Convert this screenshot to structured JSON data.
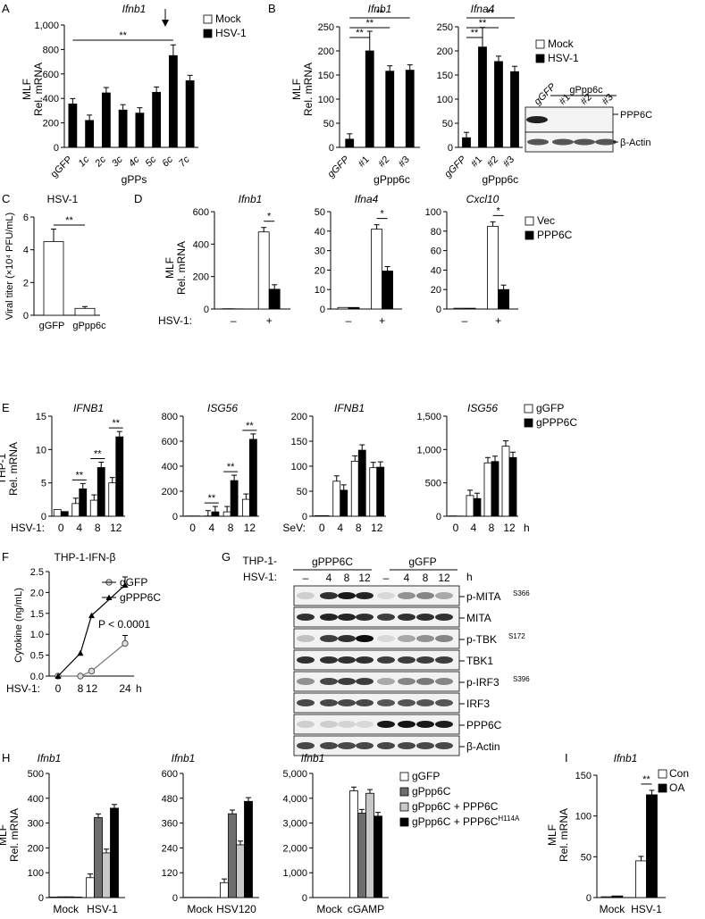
{
  "colors": {
    "white": "#ffffff",
    "black": "#000000",
    "dark_gray": "#6e6e6e",
    "light_gray": "#c8c8c8"
  },
  "chart_data": [
    {
      "panel": "A",
      "type": "bar",
      "title": "Ifnb1",
      "ylabel": "MLF\nRel. mRNA",
      "ylim": [
        0,
        1000
      ],
      "yticks": [
        "0",
        "200",
        "400",
        "600",
        "800",
        "1,000"
      ],
      "categories": [
        "gGFP",
        "1c",
        "2c",
        "3c",
        "4c",
        "5c",
        "6c",
        "7c"
      ],
      "group_label": "gPPs",
      "legend": [
        "Mock",
        "HSV-1"
      ],
      "series": [
        {
          "name": "HSV-1",
          "values": [
            355,
            220,
            445,
            305,
            280,
            450,
            750,
            545
          ]
        }
      ],
      "annotations": [
        "**"
      ]
    },
    {
      "panel": "B-left",
      "type": "bar",
      "title": "Ifnb1",
      "ylabel": "MLF\nRel. mRNA",
      "ylim": [
        0,
        250
      ],
      "yticks": [
        "0",
        "50",
        "100",
        "150",
        "200",
        "250"
      ],
      "categories": [
        "gGFP",
        "#1",
        "#2",
        "#3"
      ],
      "group_label": "gPpp6c",
      "series": [
        {
          "name": "HSV-1",
          "values": [
            17,
            200,
            158,
            160
          ]
        }
      ],
      "annotations": [
        "**",
        "**",
        "**"
      ]
    },
    {
      "panel": "B-right",
      "type": "bar",
      "title": "Ifna4",
      "ylim": [
        0,
        250
      ],
      "yticks": [
        "0",
        "50",
        "100",
        "150",
        "200",
        "250"
      ],
      "categories": [
        "gGFP",
        "#1",
        "#2",
        "#3"
      ],
      "group_label": "gPpp6c",
      "legend": [
        "Mock",
        "HSV-1"
      ],
      "series": [
        {
          "name": "HSV-1",
          "values": [
            20,
            208,
            178,
            157
          ]
        }
      ],
      "annotations": [
        "**",
        "**",
        "**"
      ]
    },
    {
      "panel": "B-blot",
      "type": "blot",
      "lanes": [
        "gGFP",
        "#1",
        "#2",
        "#3"
      ],
      "group_label": "gPpp6c",
      "bands": [
        "PPP6C",
        "β-Actin"
      ]
    },
    {
      "panel": "C",
      "type": "bar",
      "title": "HSV-1",
      "ylabel": "Viral titer (×10⁴ PFU/mL)",
      "ylim": [
        0,
        6
      ],
      "yticks": [
        "0",
        "2",
        "4",
        "6"
      ],
      "categories": [
        "gGFP",
        "gPpp6c"
      ],
      "series": [
        {
          "values": [
            4.5,
            0.42
          ]
        }
      ],
      "annotations": [
        "**"
      ]
    },
    {
      "panel": "D1",
      "type": "bar",
      "title": "Ifnb1",
      "ylabel": "MLF\nRel. mRNA",
      "ylim": [
        0,
        600
      ],
      "yticks": [
        "0",
        "200",
        "400",
        "600"
      ],
      "categories": [
        "–",
        "+"
      ],
      "xprefix": "HSV-1:",
      "series": [
        {
          "name": "Vec",
          "values": [
            2,
            475
          ]
        },
        {
          "name": "PPP6C",
          "values": [
            1,
            122
          ]
        }
      ],
      "annotations": [
        "*"
      ]
    },
    {
      "panel": "D2",
      "type": "bar",
      "title": "Ifna4",
      "ylim": [
        0,
        50
      ],
      "yticks": [
        "0",
        "10",
        "20",
        "30",
        "40",
        "50"
      ],
      "categories": [
        "–",
        "+"
      ],
      "series": [
        {
          "name": "Vec",
          "values": [
            0.8,
            41
          ]
        },
        {
          "name": "PPP6C",
          "values": [
            0.8,
            19.5
          ]
        }
      ],
      "annotations": [
        "*"
      ]
    },
    {
      "panel": "D3",
      "type": "bar",
      "title": "Cxcl10",
      "ylim": [
        0,
        100
      ],
      "yticks": [
        "0",
        "20",
        "40",
        "60",
        "80",
        "100"
      ],
      "categories": [
        "–",
        "+"
      ],
      "legend": [
        "Vec",
        "PPP6C"
      ],
      "series": [
        {
          "name": "Vec",
          "values": [
            0.8,
            85
          ]
        },
        {
          "name": "PPP6C",
          "values": [
            0.8,
            20
          ]
        }
      ],
      "annotations": [
        "*"
      ]
    },
    {
      "panel": "E1",
      "type": "bar",
      "title": "IFNB1",
      "ylabel": "THP-1\nRel. mRNA",
      "ylim": [
        0,
        15
      ],
      "yticks": [
        "0",
        "5",
        "10",
        "15"
      ],
      "categories": [
        "0",
        "4",
        "8",
        "12"
      ],
      "xprefix": "HSV-1:",
      "series": [
        {
          "name": "gGFP",
          "values": [
            1.0,
            1.9,
            2.4,
            5.0
          ]
        },
        {
          "name": "gPPP6C",
          "values": [
            0.7,
            4.1,
            7.3,
            11.9
          ]
        }
      ],
      "annotations": [
        "**",
        "**",
        "**"
      ]
    },
    {
      "panel": "E2",
      "type": "bar",
      "title": "ISG56",
      "ylim": [
        0,
        800
      ],
      "yticks": [
        "0",
        "200",
        "400",
        "600",
        "800"
      ],
      "categories": [
        "0",
        "4",
        "8",
        "12"
      ],
      "series": [
        {
          "name": "gGFP",
          "values": [
            2,
            2,
            35,
            135
          ]
        },
        {
          "name": "gPPP6C",
          "values": [
            2,
            35,
            285,
            615
          ]
        }
      ],
      "annotations": [
        "**",
        "**",
        "**"
      ]
    },
    {
      "panel": "E3",
      "type": "bar",
      "title": "IFNB1",
      "ylim": [
        0,
        200
      ],
      "yticks": [
        "0",
        "50",
        "100",
        "150",
        "200"
      ],
      "categories": [
        "0",
        "4",
        "8",
        "12"
      ],
      "xprefix": "SeV:",
      "series": [
        {
          "name": "gGFP",
          "values": [
            1,
            70,
            110,
            97
          ]
        },
        {
          "name": "gPPP6C",
          "values": [
            1,
            52,
            132,
            98
          ]
        }
      ]
    },
    {
      "panel": "E4",
      "type": "bar",
      "title": "ISG56",
      "ylim": [
        0,
        1500
      ],
      "yticks": [
        "0",
        "500",
        "1,000",
        "1,500"
      ],
      "categories": [
        "0",
        "4",
        "8",
        "12"
      ],
      "xunit": "h",
      "legend": [
        "gGFP",
        "gPPP6C"
      ],
      "series": [
        {
          "name": "gGFP",
          "values": [
            5,
            310,
            800,
            1050
          ]
        },
        {
          "name": "gPPP6C",
          "values": [
            3,
            265,
            820,
            880
          ]
        }
      ]
    },
    {
      "panel": "F",
      "type": "line",
      "title": "THP-1-IFN-β",
      "ylabel": "Cytokine (ng/mL)",
      "ylim": [
        0,
        2.5
      ],
      "yticks": [
        "0.0",
        "0.5",
        "1.0",
        "1.5",
        "2.0",
        "2.5"
      ],
      "x": [
        "0",
        "8",
        "12",
        "24"
      ],
      "xunit": "h",
      "xprefix": "HSV-1:",
      "series": [
        {
          "name": "gGFP",
          "values": [
            0,
            0,
            0.12,
            0.78
          ]
        },
        {
          "name": "gPPP6C",
          "values": [
            0,
            0.55,
            1.45,
            2.18
          ]
        }
      ],
      "annotations": [
        "P < 0.0001"
      ]
    },
    {
      "panel": "G",
      "type": "blot",
      "row_label": "THP-1-",
      "groups": [
        "gPPP6C",
        "gGFP"
      ],
      "lanes": [
        "–",
        "4",
        "8",
        "12",
        "–",
        "4",
        "8",
        "12"
      ],
      "xprefix": "HSV-1:",
      "xunit": "h",
      "bands": [
        "p-MITA",
        "MITA",
        "p-TBK",
        "TBK1",
        "p-IRF3",
        "IRF3",
        "PPP6C",
        "β-Actin"
      ]
    },
    {
      "panel": "H1",
      "type": "bar",
      "title": "Ifnb1",
      "ylabel": "MLF\nRel. mRNA",
      "ylim": [
        0,
        500
      ],
      "yticks": [
        "0",
        "100",
        "200",
        "300",
        "400",
        "500"
      ],
      "categories": [
        "Mock",
        "HSV-1"
      ],
      "series": [
        {
          "name": "gGFP",
          "values": [
            2,
            80
          ]
        },
        {
          "name": "gPpp6C",
          "values": [
            3,
            322
          ]
        },
        {
          "name": "gPpp6C + PPP6C",
          "values": [
            3,
            180
          ]
        },
        {
          "name": "gPpp6C + PPP6C H114A",
          "values": [
            2,
            360
          ]
        }
      ]
    },
    {
      "panel": "H2",
      "type": "bar",
      "title": "Ifnb1",
      "ylim": [
        0,
        600
      ],
      "yticks": [
        "0",
        "120",
        "240",
        "360",
        "480",
        "600"
      ],
      "categories": [
        "Mock",
        "HSV120"
      ],
      "series": [
        {
          "name": "gGFP",
          "values": [
            1,
            72
          ]
        },
        {
          "name": "gPpp6C",
          "values": [
            1,
            405
          ]
        },
        {
          "name": "gPpp6C + PPP6C",
          "values": [
            1,
            255
          ]
        },
        {
          "name": "gPpp6C + PPP6C H114A",
          "values": [
            1,
            465
          ]
        }
      ]
    },
    {
      "panel": "H3",
      "type": "bar",
      "title": "Ifnb1",
      "ylim": [
        0,
        5000
      ],
      "yticks": [
        "0",
        "1,000",
        "2,000",
        "3,000",
        "4,000",
        "5,000"
      ],
      "categories": [
        "Mock",
        "cGAMP"
      ],
      "legend": [
        "gGFP",
        "gPpp6C",
        "gPpp6C + PPP6C",
        "gPpp6C + PPP6C H114A"
      ],
      "series": [
        {
          "name": "gGFP",
          "values": [
            5,
            4300
          ]
        },
        {
          "name": "gPpp6C",
          "values": [
            5,
            3400
          ]
        },
        {
          "name": "gPpp6C + PPP6C",
          "values": [
            5,
            4200
          ]
        },
        {
          "name": "gPpp6C + PPP6C H114A",
          "values": [
            5,
            3280
          ]
        }
      ]
    },
    {
      "panel": "I",
      "type": "bar",
      "title": "Ifnb1",
      "ylabel": "MLF\nRel. mRNA",
      "ylim": [
        0,
        150
      ],
      "yticks": [
        "0",
        "50",
        "100",
        "150"
      ],
      "categories": [
        "Mock",
        "HSV-1"
      ],
      "legend": [
        "Con",
        "OA"
      ],
      "series": [
        {
          "name": "Con",
          "values": [
            1,
            45
          ]
        },
        {
          "name": "OA",
          "values": [
            2,
            126
          ]
        }
      ],
      "annotations": [
        "**"
      ]
    }
  ]
}
